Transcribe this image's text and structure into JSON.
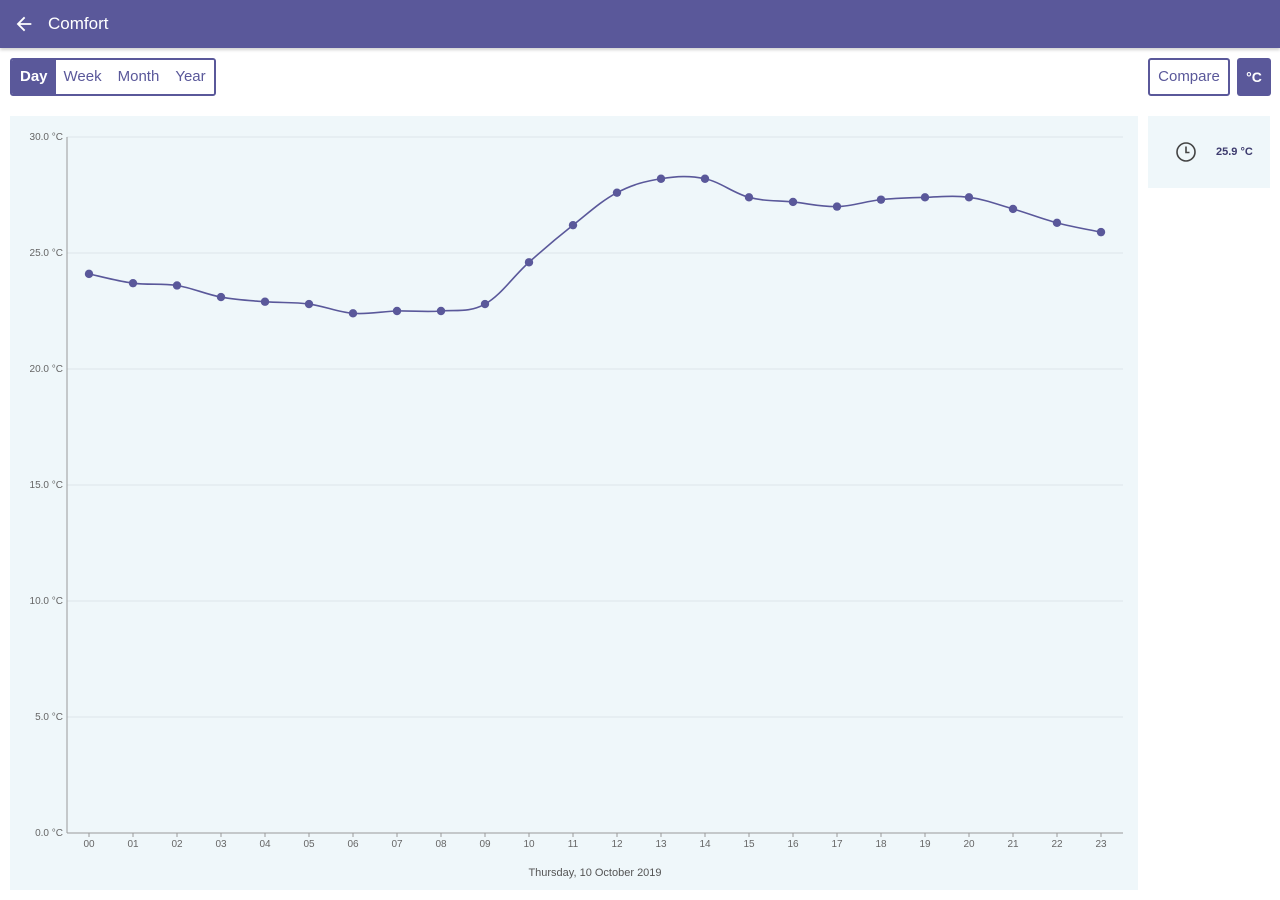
{
  "app_bar": {
    "title": "Comfort"
  },
  "range_tabs": [
    {
      "label": "Day",
      "active": true
    },
    {
      "label": "Week",
      "active": false
    },
    {
      "label": "Month",
      "active": false
    },
    {
      "label": "Year",
      "active": false
    }
  ],
  "compare_label": "Compare",
  "unit_label": "°C",
  "side_card": {
    "icon": "clock-icon",
    "value": "25.9 °C"
  },
  "colors": {
    "accent": "#5a589a",
    "panel": "#eff7fa",
    "line": "#5a589a"
  },
  "chart_data": {
    "type": "line",
    "xlabel": "Thursday, 10 October 2019",
    "ylabel": "",
    "ylim": [
      0,
      30
    ],
    "y_ticks": [
      "0.0 °C",
      "5.0 °C",
      "10.0 °C",
      "15.0 °C",
      "20.0 °C",
      "25.0 °C",
      "30.0 °C"
    ],
    "y_tick_values": [
      0,
      5,
      10,
      15,
      20,
      25,
      30
    ],
    "categories": [
      "00",
      "01",
      "02",
      "03",
      "04",
      "05",
      "06",
      "07",
      "08",
      "09",
      "10",
      "11",
      "12",
      "13",
      "14",
      "15",
      "16",
      "17",
      "18",
      "19",
      "20",
      "21",
      "22",
      "23"
    ],
    "series": [
      {
        "values": [
          24.1,
          23.7,
          23.6,
          23.1,
          22.9,
          22.8,
          22.4,
          22.5,
          22.5,
          22.8,
          24.6,
          26.2,
          27.6,
          28.2,
          28.2,
          27.4,
          27.2,
          27.0,
          27.3,
          27.4,
          27.4,
          26.9,
          26.3,
          25.9
        ]
      }
    ],
    "grid": true,
    "legend": "none"
  }
}
